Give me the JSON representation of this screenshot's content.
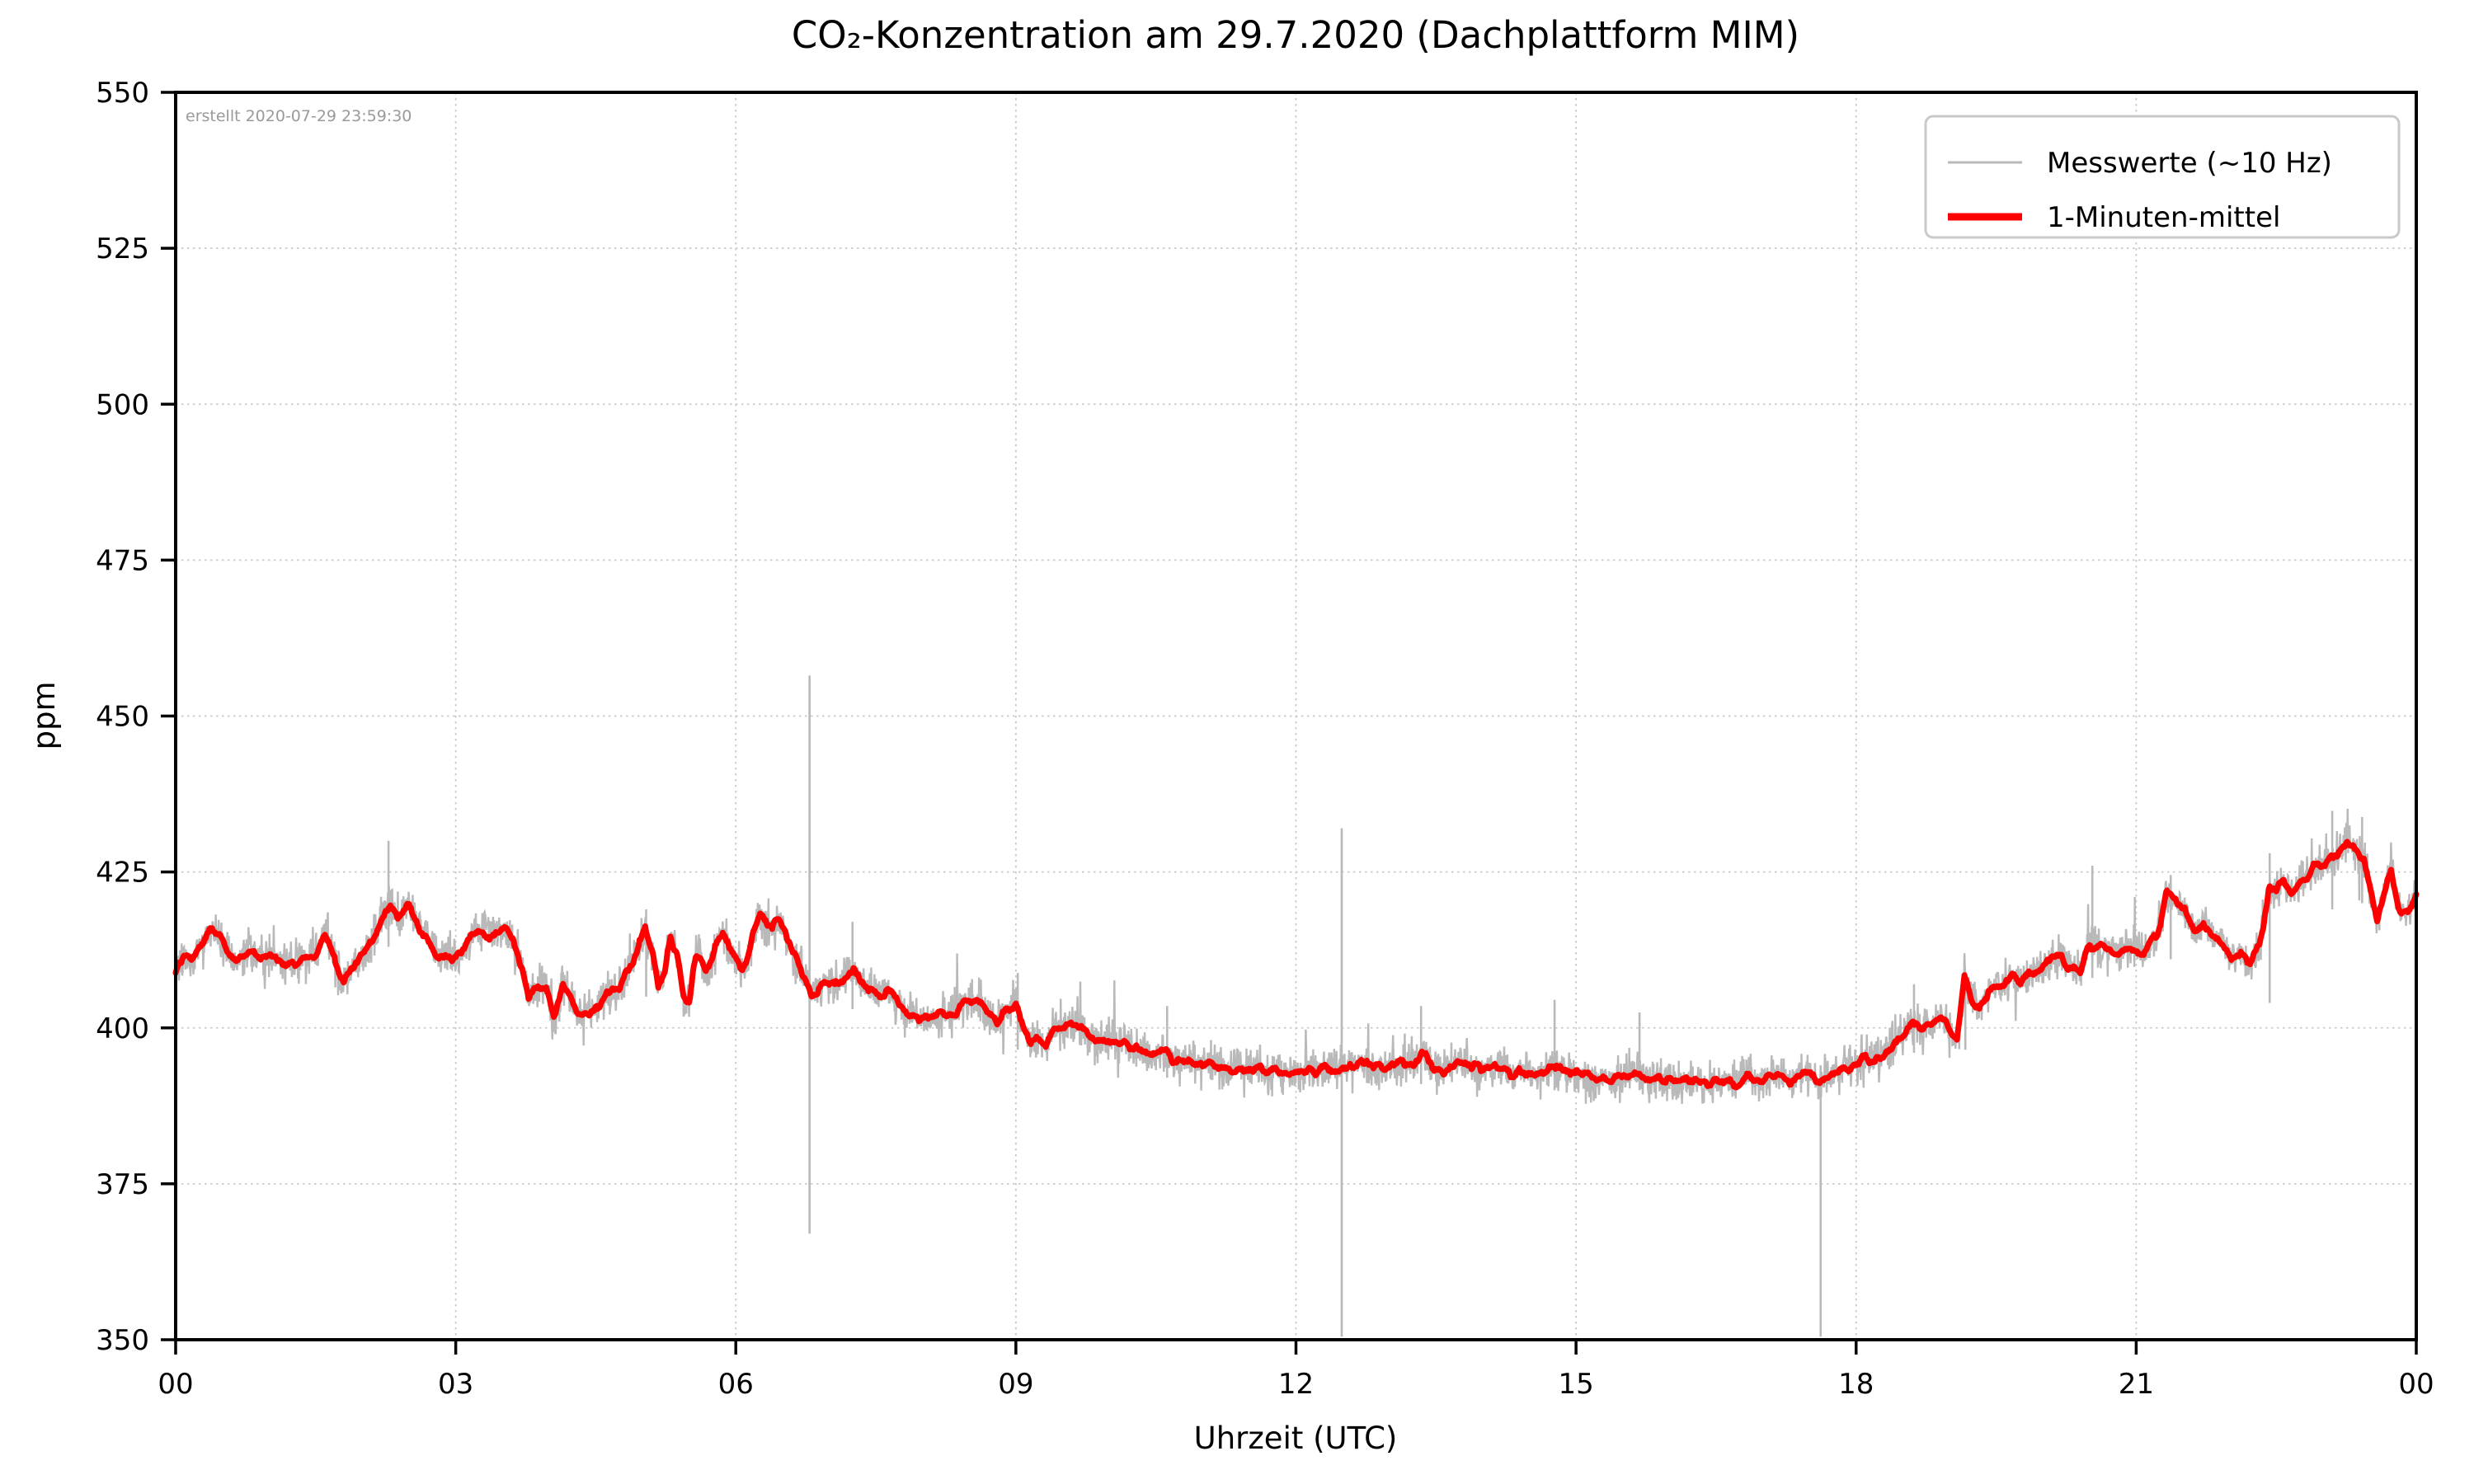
{
  "chart_data": {
    "type": "line",
    "title": "CO₂-Konzentration am 29.7.2020 (Dachplattform MIM)",
    "xlabel": "Uhrzeit (UTC)",
    "ylabel": "ppm",
    "created_note": "erstellt 2020-07-29 23:59:30",
    "background": "#ffffff",
    "grid": "dotted",
    "grid_color": "#c9c9c9",
    "spine_color": "#000000",
    "note_color": "#9a9a9a",
    "legend_position": "upper right",
    "xlim_hours": [
      0,
      24
    ],
    "ylim": [
      350,
      550
    ],
    "x_tick_hours": [
      0,
      3,
      6,
      9,
      12,
      15,
      18,
      21,
      24
    ],
    "x_tick_labels": [
      "00",
      "03",
      "06",
      "09",
      "12",
      "15",
      "18",
      "21",
      "00"
    ],
    "y_tick_values": [
      350,
      375,
      400,
      425,
      450,
      475,
      500,
      525,
      550
    ],
    "y_tick_labels": [
      "350",
      "375",
      "400",
      "425",
      "450",
      "475",
      "500",
      "525",
      "550"
    ],
    "series": [
      {
        "name": "Messwerte (~10 Hz)",
        "color": "#b9b9b9",
        "style": "raw-noise",
        "width": 3
      },
      {
        "name": "1-Minuten-mittel",
        "color": "#ff0000",
        "style": "mean",
        "width": 9
      }
    ],
    "mean_series": {
      "hours": [
        0.0,
        0.1,
        0.2,
        0.3,
        0.38,
        0.48,
        0.55,
        0.65,
        0.78,
        0.9,
        1.0,
        1.12,
        1.25,
        1.38,
        1.5,
        1.6,
        1.7,
        1.8,
        1.9,
        2.0,
        2.1,
        2.2,
        2.3,
        2.38,
        2.5,
        2.6,
        2.7,
        2.8,
        2.92,
        3.05,
        3.18,
        3.3,
        3.42,
        3.52,
        3.62,
        3.72,
        3.78,
        3.88,
        3.97,
        4.05,
        4.15,
        4.25,
        4.36,
        4.5,
        4.64,
        4.78,
        4.92,
        5.03,
        5.11,
        5.17,
        5.24,
        5.3,
        5.37,
        5.44,
        5.5,
        5.57,
        5.62,
        5.68,
        5.74,
        5.8,
        5.86,
        5.93,
        6.0,
        6.07,
        6.13,
        6.19,
        6.26,
        6.33,
        6.39,
        6.44,
        6.51,
        6.58,
        6.66,
        6.73,
        6.81,
        6.89,
        6.97,
        7.06,
        7.16,
        7.26,
        7.33,
        7.42,
        7.52,
        7.62,
        7.72,
        7.82,
        7.92,
        8.02,
        8.13,
        8.24,
        8.35,
        8.46,
        8.57,
        8.69,
        8.8,
        8.9,
        9.0,
        9.08,
        9.16,
        9.24,
        9.32,
        9.41,
        9.51,
        9.61,
        9.7,
        9.78,
        9.86,
        9.96,
        10.06,
        10.16,
        10.26,
        10.36,
        10.46,
        10.56,
        10.66,
        10.76,
        10.86,
        10.96,
        11.06,
        11.16,
        11.26,
        11.36,
        11.46,
        11.56,
        11.66,
        11.76,
        11.86,
        11.96,
        12.1,
        12.25,
        12.4,
        12.55,
        12.7,
        12.8,
        12.95,
        13.1,
        13.25,
        13.35,
        13.48,
        13.6,
        13.72,
        13.85,
        14.0,
        14.15,
        14.3,
        14.45,
        14.6,
        14.75,
        14.9,
        15.05,
        15.2,
        15.35,
        15.5,
        15.65,
        15.8,
        15.95,
        16.1,
        16.3,
        16.45,
        16.57,
        16.7,
        16.85,
        17.0,
        17.15,
        17.3,
        17.45,
        17.6,
        17.75,
        17.9,
        18.0,
        18.1,
        18.2,
        18.3,
        18.4,
        18.5,
        18.6,
        18.7,
        18.8,
        18.9,
        19.0,
        19.08,
        19.16,
        19.24,
        19.32,
        19.42,
        19.5,
        19.58,
        19.67,
        19.76,
        19.85,
        19.94,
        20.03,
        20.12,
        20.2,
        20.3,
        20.4,
        20.5,
        20.6,
        20.72,
        20.82,
        20.92,
        21.02,
        21.12,
        21.22,
        21.32,
        21.42,
        21.52,
        21.62,
        21.72,
        21.82,
        21.92,
        22.02,
        22.12,
        22.22,
        22.32,
        22.42,
        22.5,
        22.58,
        22.66,
        22.76,
        22.86,
        22.96,
        23.06,
        23.16,
        23.26,
        23.36,
        23.44,
        23.52,
        23.58,
        23.66,
        23.73,
        23.81,
        23.91,
        24.0
      ],
      "ppm": [
        410.0,
        410.8,
        411.5,
        414.0,
        416.4,
        414.5,
        412.3,
        410.6,
        412.2,
        411.5,
        411.6,
        411.0,
        410.6,
        411.2,
        412.0,
        414.9,
        411.5,
        407.3,
        409.5,
        411.8,
        413.2,
        417.3,
        419.6,
        417.7,
        419.5,
        416.2,
        414.7,
        411.6,
        411.1,
        411.5,
        415.2,
        416.1,
        415.0,
        415.1,
        413.8,
        409.0,
        404.2,
        406.6,
        406.4,
        401.8,
        407.3,
        404.0,
        401.4,
        403.4,
        405.4,
        406.9,
        411.5,
        415.7,
        412.0,
        406.6,
        408.9,
        414.1,
        411.6,
        404.6,
        404.2,
        411.0,
        412.4,
        408.6,
        410.4,
        414.4,
        415.2,
        412.6,
        410.9,
        409.6,
        412.2,
        415.7,
        417.7,
        416.4,
        415.8,
        417.2,
        415.8,
        413.4,
        410.4,
        408.4,
        405.4,
        406.6,
        406.9,
        407.1,
        407.9,
        409.7,
        407.9,
        406.4,
        405.8,
        405.7,
        404.7,
        402.4,
        401.7,
        401.4,
        401.6,
        402.1,
        402.7,
        403.9,
        404.5,
        402.7,
        400.9,
        402.2,
        404.0,
        399.9,
        397.8,
        398.5,
        397.3,
        399.4,
        400.3,
        400.2,
        400.4,
        398.9,
        397.5,
        398.2,
        398.3,
        397.7,
        396.5,
        396.0,
        395.6,
        396.2,
        395.0,
        394.6,
        394.9,
        393.9,
        394.6,
        393.8,
        393.4,
        393.8,
        392.9,
        393.6,
        392.9,
        393.3,
        392.9,
        392.6,
        392.9,
        393.0,
        393.2,
        393.6,
        395.0,
        393.5,
        393.8,
        393.6,
        393.9,
        396.0,
        393.4,
        393.5,
        394.7,
        393.8,
        392.9,
        393.8,
        392.9,
        393.3,
        392.5,
        393.8,
        393.3,
        392.5,
        391.9,
        391.2,
        391.6,
        392.9,
        391.6,
        391.7,
        391.6,
        391.5,
        391.0,
        391.5,
        390.8,
        392.2,
        391.2,
        393.0,
        391.2,
        393.3,
        391.3,
        392.8,
        394.1,
        393.6,
        395.5,
        395.1,
        396.2,
        397.3,
        398.2,
        400.8,
        399.5,
        400.4,
        402.0,
        400.2,
        398.0,
        408.2,
        404.5,
        402.8,
        406.2,
        407.0,
        406.2,
        408.8,
        407.0,
        408.4,
        409.2,
        410.0,
        410.6,
        411.5,
        409.9,
        408.6,
        413.8,
        412.5,
        413.0,
        412.0,
        412.8,
        412.4,
        412.9,
        414.5,
        421.5,
        419.9,
        418.4,
        415.6,
        416.8,
        414.6,
        413.8,
        411.2,
        411.9,
        410.1,
        413.1,
        422.3,
        421.5,
        423.7,
        421.6,
        423.5,
        424.2,
        425.9,
        426.8,
        427.5,
        430.1,
        428.3,
        427.6,
        421.5,
        416.8,
        422.3,
        425.9,
        419.0,
        418.4,
        421.0
      ]
    },
    "raw_noise_model": {
      "seed": 1337,
      "dt_hours": 0.005,
      "sigma_ppm": 1.6,
      "burst_prob": 0.015,
      "burst_scale_ppm": 5.5,
      "red_jitter_ppm": 0.45,
      "red_dt_hours": 0.01
    },
    "spikes": [
      {
        "hour": 2.28,
        "top": 430.0,
        "bottom": 413.0
      },
      {
        "hour": 5.04,
        "top": 419.0,
        "bottom": 405.0
      },
      {
        "hour": 6.79,
        "top": 456.5,
        "bottom": 367.0
      },
      {
        "hour": 7.25,
        "top": 417.0,
        "bottom": 403.0
      },
      {
        "hour": 9.02,
        "top": 408.8,
        "bottom": 396.5
      },
      {
        "hour": 10.62,
        "top": 403.5,
        "bottom": 392.0
      },
      {
        "hour": 12.49,
        "top": 432.0,
        "bottom": 350.5
      },
      {
        "hour": 13.34,
        "top": 403.5,
        "bottom": 391.0
      },
      {
        "hour": 14.77,
        "top": 404.5,
        "bottom": 390.0
      },
      {
        "hour": 15.68,
        "top": 402.5,
        "bottom": 390.0
      },
      {
        "hour": 17.62,
        "top": 394.0,
        "bottom": 350.5
      },
      {
        "hour": 18.62,
        "top": 407.0,
        "bottom": 396.0
      },
      {
        "hour": 19.17,
        "top": 409.0,
        "bottom": 396.5
      },
      {
        "hour": 20.53,
        "top": 426.0,
        "bottom": 408.0
      },
      {
        "hour": 21.37,
        "top": 424.5,
        "bottom": 411.0
      },
      {
        "hour": 22.43,
        "top": 428.0,
        "bottom": 404.0
      },
      {
        "hour": 23.1,
        "top": 434.8,
        "bottom": 419.0
      },
      {
        "hour": 23.42,
        "top": 433.8,
        "bottom": 420.0
      }
    ]
  }
}
